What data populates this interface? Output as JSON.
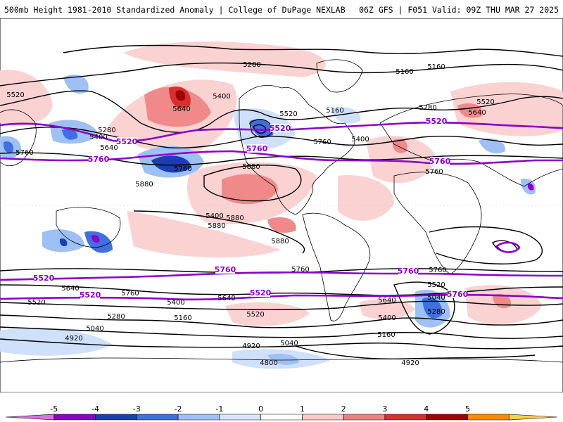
{
  "header": {
    "left": "500mb Height 1981-2010 Standardized Anomaly | College of DuPage NEXLAB",
    "right": "06Z GFS | F051 Valid: 09Z THU MAR 27 2025"
  },
  "contour_labels": {
    "black": [
      "5280",
      "5160",
      "5160",
      "5520",
      "5400",
      "5640",
      "5280",
      "5400",
      "5520",
      "5160",
      "5280",
      "5640",
      "5520",
      "5400",
      "5640",
      "5760",
      "5760",
      "5760",
      "5880",
      "5880",
      "5880",
      "5880",
      "5880",
      "5760",
      "5760",
      "5640",
      "5520",
      "5400",
      "5160",
      "5280",
      "5040",
      "4920",
      "4920",
      "4800",
      "5040",
      "5640",
      "5520",
      "5280",
      "5040",
      "5400",
      "5160",
      "4920",
      "5520",
      "5640",
      "5760",
      "5400",
      "5760"
    ],
    "purple": [
      "5520",
      "5520",
      "5520",
      "5760",
      "5760",
      "5760",
      "5760",
      "5760",
      "5520",
      "5520",
      "5520",
      "5760"
    ]
  },
  "colorbar": {
    "ticks": [
      "-5",
      "-4",
      "-3",
      "-2",
      "-1",
      "0",
      "1",
      "2",
      "3",
      "4",
      "5"
    ],
    "colors": [
      "#e070e0",
      "#8a00c8",
      "#1a3fb0",
      "#3f6fe0",
      "#9fc0f5",
      "#d6e6fb",
      "#ffffff",
      "#fbc8c8",
      "#f08080",
      "#d83030",
      "#a00000",
      "#ff8c00",
      "#ffd050"
    ]
  }
}
